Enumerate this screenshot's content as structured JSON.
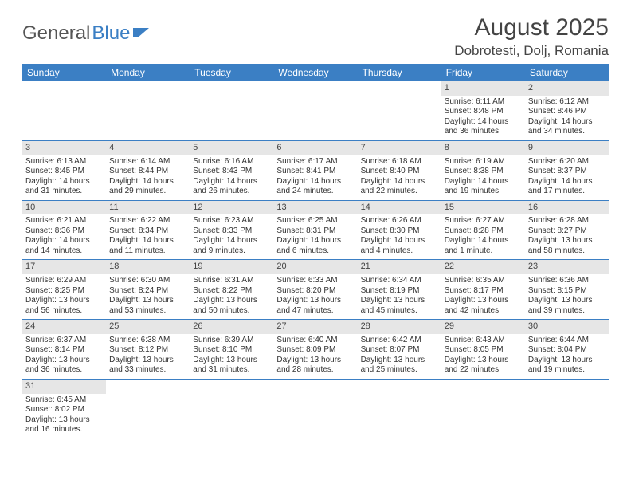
{
  "logo": {
    "text1": "General",
    "text2": "Blue"
  },
  "title": "August 2025",
  "location": "Dobrotesti, Dolj, Romania",
  "colors": {
    "header_bg": "#3b7fc4",
    "header_text": "#ffffff",
    "daynum_bg": "#e6e6e6",
    "border": "#3b7fc4",
    "text": "#333333"
  },
  "weekdays": [
    "Sunday",
    "Monday",
    "Tuesday",
    "Wednesday",
    "Thursday",
    "Friday",
    "Saturday"
  ],
  "weeks": [
    [
      null,
      null,
      null,
      null,
      null,
      {
        "day": "1",
        "sunrise": "Sunrise: 6:11 AM",
        "sunset": "Sunset: 8:48 PM",
        "daylight": "Daylight: 14 hours and 36 minutes."
      },
      {
        "day": "2",
        "sunrise": "Sunrise: 6:12 AM",
        "sunset": "Sunset: 8:46 PM",
        "daylight": "Daylight: 14 hours and 34 minutes."
      }
    ],
    [
      {
        "day": "3",
        "sunrise": "Sunrise: 6:13 AM",
        "sunset": "Sunset: 8:45 PM",
        "daylight": "Daylight: 14 hours and 31 minutes."
      },
      {
        "day": "4",
        "sunrise": "Sunrise: 6:14 AM",
        "sunset": "Sunset: 8:44 PM",
        "daylight": "Daylight: 14 hours and 29 minutes."
      },
      {
        "day": "5",
        "sunrise": "Sunrise: 6:16 AM",
        "sunset": "Sunset: 8:43 PM",
        "daylight": "Daylight: 14 hours and 26 minutes."
      },
      {
        "day": "6",
        "sunrise": "Sunrise: 6:17 AM",
        "sunset": "Sunset: 8:41 PM",
        "daylight": "Daylight: 14 hours and 24 minutes."
      },
      {
        "day": "7",
        "sunrise": "Sunrise: 6:18 AM",
        "sunset": "Sunset: 8:40 PM",
        "daylight": "Daylight: 14 hours and 22 minutes."
      },
      {
        "day": "8",
        "sunrise": "Sunrise: 6:19 AM",
        "sunset": "Sunset: 8:38 PM",
        "daylight": "Daylight: 14 hours and 19 minutes."
      },
      {
        "day": "9",
        "sunrise": "Sunrise: 6:20 AM",
        "sunset": "Sunset: 8:37 PM",
        "daylight": "Daylight: 14 hours and 17 minutes."
      }
    ],
    [
      {
        "day": "10",
        "sunrise": "Sunrise: 6:21 AM",
        "sunset": "Sunset: 8:36 PM",
        "daylight": "Daylight: 14 hours and 14 minutes."
      },
      {
        "day": "11",
        "sunrise": "Sunrise: 6:22 AM",
        "sunset": "Sunset: 8:34 PM",
        "daylight": "Daylight: 14 hours and 11 minutes."
      },
      {
        "day": "12",
        "sunrise": "Sunrise: 6:23 AM",
        "sunset": "Sunset: 8:33 PM",
        "daylight": "Daylight: 14 hours and 9 minutes."
      },
      {
        "day": "13",
        "sunrise": "Sunrise: 6:25 AM",
        "sunset": "Sunset: 8:31 PM",
        "daylight": "Daylight: 14 hours and 6 minutes."
      },
      {
        "day": "14",
        "sunrise": "Sunrise: 6:26 AM",
        "sunset": "Sunset: 8:30 PM",
        "daylight": "Daylight: 14 hours and 4 minutes."
      },
      {
        "day": "15",
        "sunrise": "Sunrise: 6:27 AM",
        "sunset": "Sunset: 8:28 PM",
        "daylight": "Daylight: 14 hours and 1 minute."
      },
      {
        "day": "16",
        "sunrise": "Sunrise: 6:28 AM",
        "sunset": "Sunset: 8:27 PM",
        "daylight": "Daylight: 13 hours and 58 minutes."
      }
    ],
    [
      {
        "day": "17",
        "sunrise": "Sunrise: 6:29 AM",
        "sunset": "Sunset: 8:25 PM",
        "daylight": "Daylight: 13 hours and 56 minutes."
      },
      {
        "day": "18",
        "sunrise": "Sunrise: 6:30 AM",
        "sunset": "Sunset: 8:24 PM",
        "daylight": "Daylight: 13 hours and 53 minutes."
      },
      {
        "day": "19",
        "sunrise": "Sunrise: 6:31 AM",
        "sunset": "Sunset: 8:22 PM",
        "daylight": "Daylight: 13 hours and 50 minutes."
      },
      {
        "day": "20",
        "sunrise": "Sunrise: 6:33 AM",
        "sunset": "Sunset: 8:20 PM",
        "daylight": "Daylight: 13 hours and 47 minutes."
      },
      {
        "day": "21",
        "sunrise": "Sunrise: 6:34 AM",
        "sunset": "Sunset: 8:19 PM",
        "daylight": "Daylight: 13 hours and 45 minutes."
      },
      {
        "day": "22",
        "sunrise": "Sunrise: 6:35 AM",
        "sunset": "Sunset: 8:17 PM",
        "daylight": "Daylight: 13 hours and 42 minutes."
      },
      {
        "day": "23",
        "sunrise": "Sunrise: 6:36 AM",
        "sunset": "Sunset: 8:15 PM",
        "daylight": "Daylight: 13 hours and 39 minutes."
      }
    ],
    [
      {
        "day": "24",
        "sunrise": "Sunrise: 6:37 AM",
        "sunset": "Sunset: 8:14 PM",
        "daylight": "Daylight: 13 hours and 36 minutes."
      },
      {
        "day": "25",
        "sunrise": "Sunrise: 6:38 AM",
        "sunset": "Sunset: 8:12 PM",
        "daylight": "Daylight: 13 hours and 33 minutes."
      },
      {
        "day": "26",
        "sunrise": "Sunrise: 6:39 AM",
        "sunset": "Sunset: 8:10 PM",
        "daylight": "Daylight: 13 hours and 31 minutes."
      },
      {
        "day": "27",
        "sunrise": "Sunrise: 6:40 AM",
        "sunset": "Sunset: 8:09 PM",
        "daylight": "Daylight: 13 hours and 28 minutes."
      },
      {
        "day": "28",
        "sunrise": "Sunrise: 6:42 AM",
        "sunset": "Sunset: 8:07 PM",
        "daylight": "Daylight: 13 hours and 25 minutes."
      },
      {
        "day": "29",
        "sunrise": "Sunrise: 6:43 AM",
        "sunset": "Sunset: 8:05 PM",
        "daylight": "Daylight: 13 hours and 22 minutes."
      },
      {
        "day": "30",
        "sunrise": "Sunrise: 6:44 AM",
        "sunset": "Sunset: 8:04 PM",
        "daylight": "Daylight: 13 hours and 19 minutes."
      }
    ],
    [
      {
        "day": "31",
        "sunrise": "Sunrise: 6:45 AM",
        "sunset": "Sunset: 8:02 PM",
        "daylight": "Daylight: 13 hours and 16 minutes."
      },
      null,
      null,
      null,
      null,
      null,
      null
    ]
  ]
}
